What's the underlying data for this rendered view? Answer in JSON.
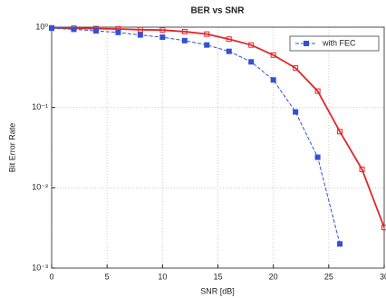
{
  "chart_data": {
    "type": "line",
    "title": "BER vs SNR",
    "x_label": "SNR [dB]",
    "y_label": "Bit Error Rate",
    "x": [
      0,
      2,
      4,
      6,
      8,
      10,
      12,
      14,
      16,
      18,
      20,
      22,
      24,
      26,
      28,
      30
    ],
    "series": [
      {
        "color": "#e3262b",
        "dashed": false,
        "marker_filled": false,
        "values": [
          0.98,
          0.97,
          0.96,
          0.95,
          0.93,
          0.92,
          0.88,
          0.82,
          0.71,
          0.6,
          0.45,
          0.31,
          0.16,
          0.05,
          0.017,
          0.0032
        ]
      },
      {
        "name": "with FEC",
        "color": "#3250d8",
        "dashed": true,
        "marker_filled": true,
        "values": [
          0.97,
          0.94,
          0.9,
          0.86,
          0.8,
          0.75,
          0.68,
          0.6,
          0.5,
          0.37,
          0.22,
          0.088,
          0.024,
          0.002,
          null,
          null
        ]
      }
    ],
    "xlim": [
      0,
      30
    ],
    "xticks": [
      0,
      5,
      10,
      15,
      20,
      25,
      30
    ],
    "ylim": [
      0.001,
      1
    ],
    "log_y": true,
    "yticks": [
      {
        "value": 0.001,
        "label": "10⁻³"
      },
      {
        "value": 0.01,
        "label": "10⁻²"
      },
      {
        "value": 0.1,
        "label": "10⁻¹"
      },
      {
        "value": 1,
        "label": "10⁰"
      }
    ],
    "grid": true,
    "legend": "upper right"
  }
}
